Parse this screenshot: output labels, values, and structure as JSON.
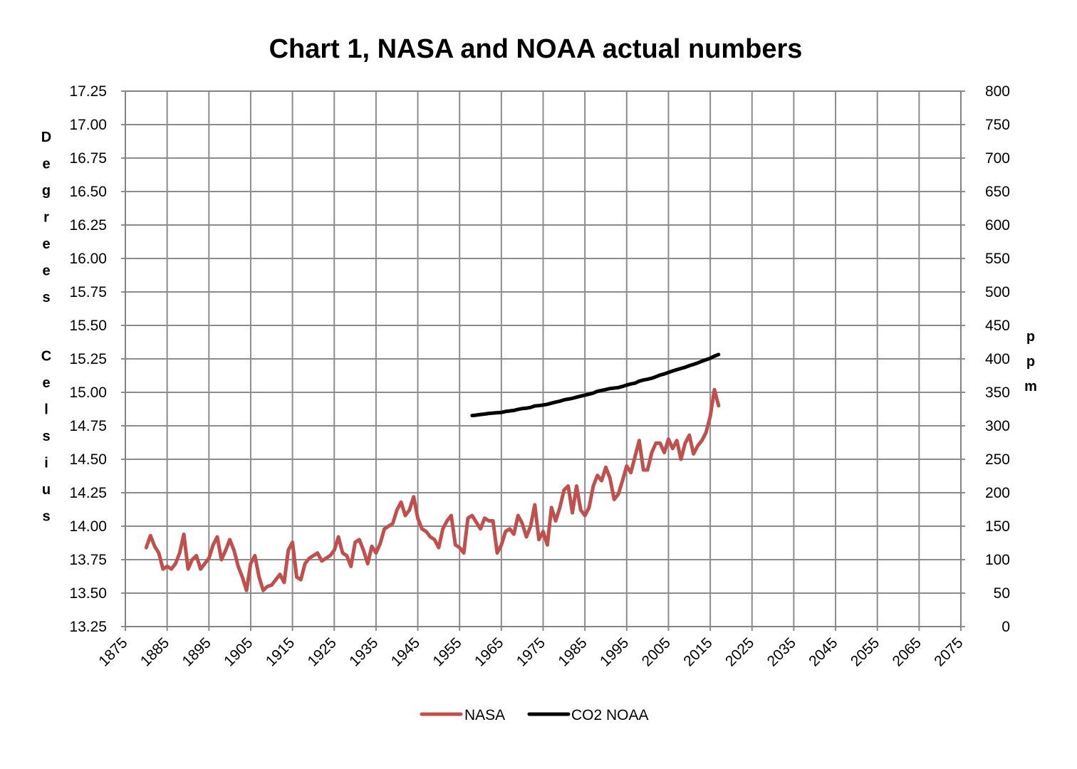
{
  "chart_data": {
    "type": "line",
    "title": "Chart 1, NASA and NOAA actual numbers",
    "ylabel": "Degrees Celsius",
    "y2label": "ppm",
    "xlim": [
      1875,
      2075
    ],
    "ylim": [
      13.25,
      17.25
    ],
    "y2lim": [
      0,
      800
    ],
    "grid": true,
    "legend_position": "bottom",
    "x_ticks": [
      "1875",
      "1885",
      "1895",
      "1905",
      "1915",
      "1925",
      "1935",
      "1945",
      "1955",
      "1965",
      "1975",
      "1985",
      "1995",
      "2005",
      "2015",
      "2025",
      "2035",
      "2045",
      "2055",
      "2065",
      "2075"
    ],
    "y_ticks": [
      "13.25",
      "13.50",
      "13.75",
      "14.00",
      "14.25",
      "14.50",
      "14.75",
      "15.00",
      "15.25",
      "15.50",
      "15.75",
      "16.00",
      "16.25",
      "16.50",
      "16.75",
      "17.00",
      "17.25"
    ],
    "y2_ticks": [
      "0",
      "50",
      "100",
      "150",
      "200",
      "250",
      "300",
      "350",
      "400",
      "450",
      "500",
      "550",
      "600",
      "650",
      "700",
      "750",
      "800"
    ],
    "series": [
      {
        "name": "NASA",
        "axis": "left",
        "color": "#C0504D",
        "x": [
          1880,
          1881,
          1882,
          1883,
          1884,
          1885,
          1886,
          1887,
          1888,
          1889,
          1890,
          1891,
          1892,
          1893,
          1894,
          1895,
          1896,
          1897,
          1898,
          1899,
          1900,
          1901,
          1902,
          1903,
          1904,
          1905,
          1906,
          1907,
          1908,
          1909,
          1910,
          1911,
          1912,
          1913,
          1914,
          1915,
          1916,
          1917,
          1918,
          1919,
          1920,
          1921,
          1922,
          1923,
          1924,
          1925,
          1926,
          1927,
          1928,
          1929,
          1930,
          1931,
          1932,
          1933,
          1934,
          1935,
          1936,
          1937,
          1938,
          1939,
          1940,
          1941,
          1942,
          1943,
          1944,
          1945,
          1946,
          1947,
          1948,
          1949,
          1950,
          1951,
          1952,
          1953,
          1954,
          1955,
          1956,
          1957,
          1958,
          1959,
          1960,
          1961,
          1962,
          1963,
          1964,
          1965,
          1966,
          1967,
          1968,
          1969,
          1970,
          1971,
          1972,
          1973,
          1974,
          1975,
          1976,
          1977,
          1978,
          1979,
          1980,
          1981,
          1982,
          1983,
          1984,
          1985,
          1986,
          1987,
          1988,
          1989,
          1990,
          1991,
          1992,
          1993,
          1994,
          1995,
          1996,
          1997,
          1998,
          1999,
          2000,
          2001,
          2002,
          2003,
          2004,
          2005,
          2006,
          2007,
          2008,
          2009,
          2010,
          2011,
          2012,
          2013,
          2014,
          2015,
          2016,
          2017
        ],
        "values": [
          13.84,
          13.93,
          13.85,
          13.8,
          13.68,
          13.7,
          13.68,
          13.72,
          13.8,
          13.94,
          13.68,
          13.75,
          13.78,
          13.68,
          13.72,
          13.76,
          13.86,
          13.92,
          13.75,
          13.82,
          13.9,
          13.82,
          13.7,
          13.62,
          13.52,
          13.72,
          13.78,
          13.62,
          13.52,
          13.55,
          13.56,
          13.6,
          13.64,
          13.58,
          13.82,
          13.88,
          13.62,
          13.6,
          13.72,
          13.76,
          13.78,
          13.8,
          13.74,
          13.76,
          13.78,
          13.82,
          13.92,
          13.8,
          13.78,
          13.7,
          13.88,
          13.9,
          13.82,
          13.72,
          13.85,
          13.8,
          13.87,
          13.98,
          14.0,
          14.02,
          14.12,
          14.18,
          14.08,
          14.12,
          14.22,
          14.06,
          13.98,
          13.96,
          13.92,
          13.9,
          13.84,
          13.98,
          14.04,
          14.08,
          13.86,
          13.84,
          13.8,
          14.06,
          14.08,
          14.03,
          13.98,
          14.06,
          14.04,
          14.04,
          13.8,
          13.86,
          13.96,
          13.98,
          13.94,
          14.08,
          14.02,
          13.92,
          14.0,
          14.16,
          13.9,
          13.96,
          13.86,
          14.14,
          14.04,
          14.14,
          14.27,
          14.3,
          14.1,
          14.3,
          14.12,
          14.08,
          14.14,
          14.3,
          14.38,
          14.34,
          14.44,
          14.36,
          14.2,
          14.24,
          14.34,
          14.45,
          14.4,
          14.52,
          14.64,
          14.42,
          14.42,
          14.55,
          14.62,
          14.62,
          14.55,
          14.65,
          14.58,
          14.64,
          14.5,
          14.62,
          14.68,
          14.54,
          14.6,
          14.64,
          14.7,
          14.82,
          15.02,
          14.9
        ]
      },
      {
        "name": "CO2 NOAA",
        "axis": "right",
        "color": "#000000",
        "x": [
          1958,
          1959,
          1960,
          1961,
          1962,
          1963,
          1964,
          1965,
          1966,
          1967,
          1968,
          1969,
          1970,
          1971,
          1972,
          1973,
          1974,
          1975,
          1976,
          1977,
          1978,
          1979,
          1980,
          1981,
          1982,
          1983,
          1984,
          1985,
          1986,
          1987,
          1988,
          1989,
          1990,
          1991,
          1992,
          1993,
          1994,
          1995,
          1996,
          1997,
          1998,
          1999,
          2000,
          2001,
          2002,
          2003,
          2004,
          2005,
          2006,
          2007,
          2008,
          2009,
          2010,
          2011,
          2012,
          2013,
          2014,
          2015,
          2016,
          2017
        ],
        "values": [
          315.3,
          316.0,
          316.9,
          317.6,
          318.5,
          319.0,
          319.6,
          320.0,
          321.4,
          322.2,
          323.0,
          324.6,
          325.7,
          326.3,
          327.5,
          329.7,
          330.2,
          331.1,
          332.1,
          333.8,
          335.4,
          336.8,
          338.7,
          339.9,
          341.1,
          342.8,
          344.4,
          345.9,
          347.2,
          348.9,
          351.5,
          352.9,
          354.2,
          355.6,
          356.4,
          357.1,
          358.8,
          360.8,
          362.6,
          363.7,
          366.7,
          368.4,
          369.6,
          371.1,
          373.3,
          375.8,
          377.5,
          379.8,
          381.9,
          383.8,
          385.6,
          387.4,
          389.9,
          391.7,
          393.9,
          396.5,
          398.6,
          400.8,
          404.2,
          406.5
        ]
      }
    ]
  }
}
